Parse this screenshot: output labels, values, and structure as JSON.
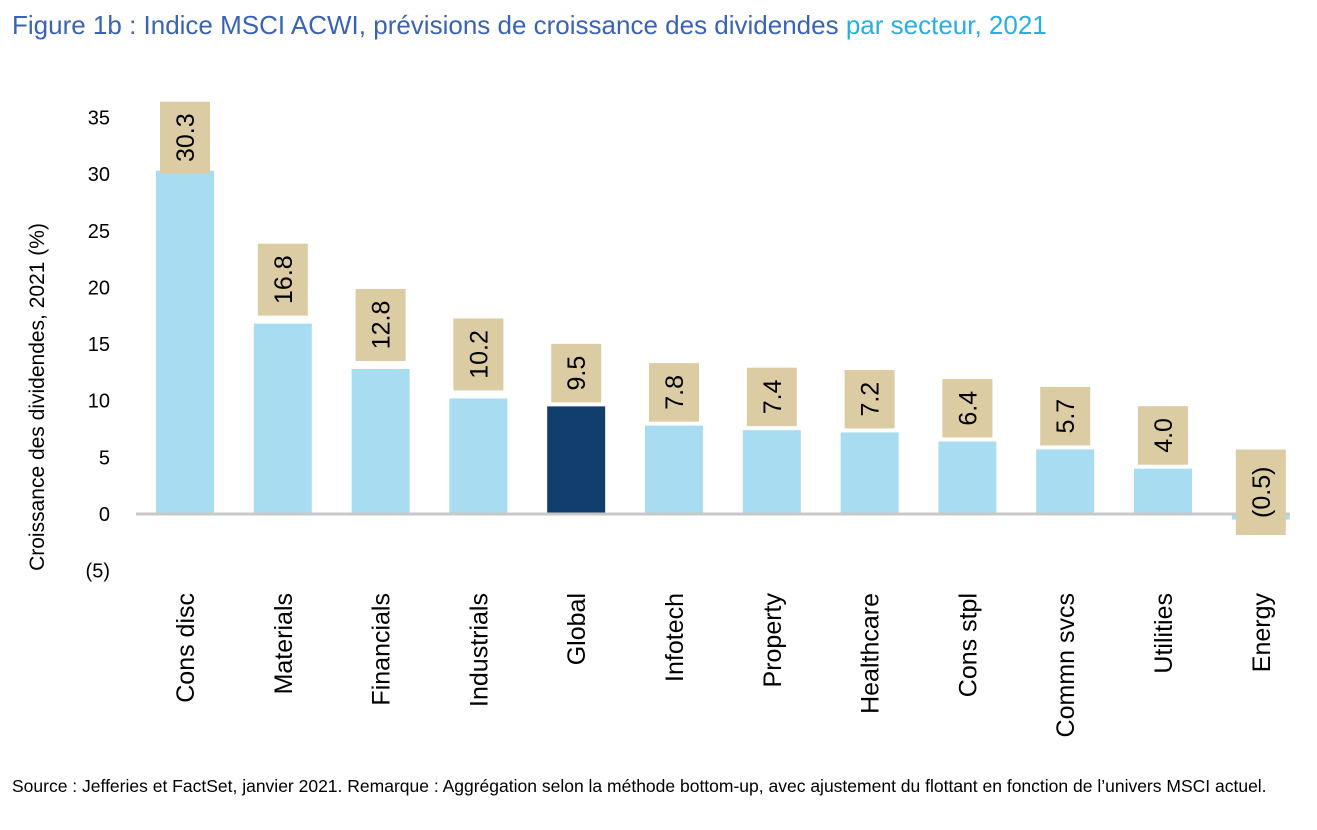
{
  "title": {
    "part1": "Figure 1b : Indice MSCI ACWI, prévisions de croissance des dividendes ",
    "part2": "par secteur, 2021"
  },
  "source": "Source : Jefferies et FactSet, janvier 2021. Remarque : Aggrégation selon la méthode bottom-up, avec ajustement du flottant en fonction de l’univers MSCI actuel.",
  "colors": {
    "bar": "#a8dcf0",
    "highlight": "#123e6e",
    "label_box": "#dccca4",
    "axis": "#c8c8c8"
  },
  "chart_data": {
    "type": "bar",
    "title": "Figure 1b : Indice MSCI ACWI, prévisions de croissance des dividendes par secteur, 2021",
    "ylabel": "Croissance des dividendes, 2021 (%)",
    "xlabel": "",
    "ylim": [
      -5,
      35
    ],
    "yticks": [
      35,
      30,
      25,
      20,
      15,
      10,
      5,
      0,
      -5
    ],
    "ytick_labels": [
      "35",
      "30",
      "25",
      "20",
      "15",
      "10",
      "5",
      "0",
      "(5)"
    ],
    "categories": [
      "Cons disc",
      "Materials",
      "Financials",
      "Industrials",
      "Global",
      "Infotech",
      "Property",
      "Healthcare",
      "Cons stpl",
      "Commn svcs",
      "Utilities",
      "Energy"
    ],
    "values": [
      30.3,
      16.8,
      12.8,
      10.2,
      9.5,
      7.8,
      7.4,
      7.2,
      6.4,
      5.7,
      4.0,
      -0.5
    ],
    "data_labels": [
      "30.3",
      "16.8",
      "12.8",
      "10.2",
      "9.5",
      "7.8",
      "7.4",
      "7.2",
      "6.4",
      "5.7",
      "4.0",
      "(0.5)"
    ],
    "highlight": "Global",
    "grid": false,
    "legend": "none"
  }
}
